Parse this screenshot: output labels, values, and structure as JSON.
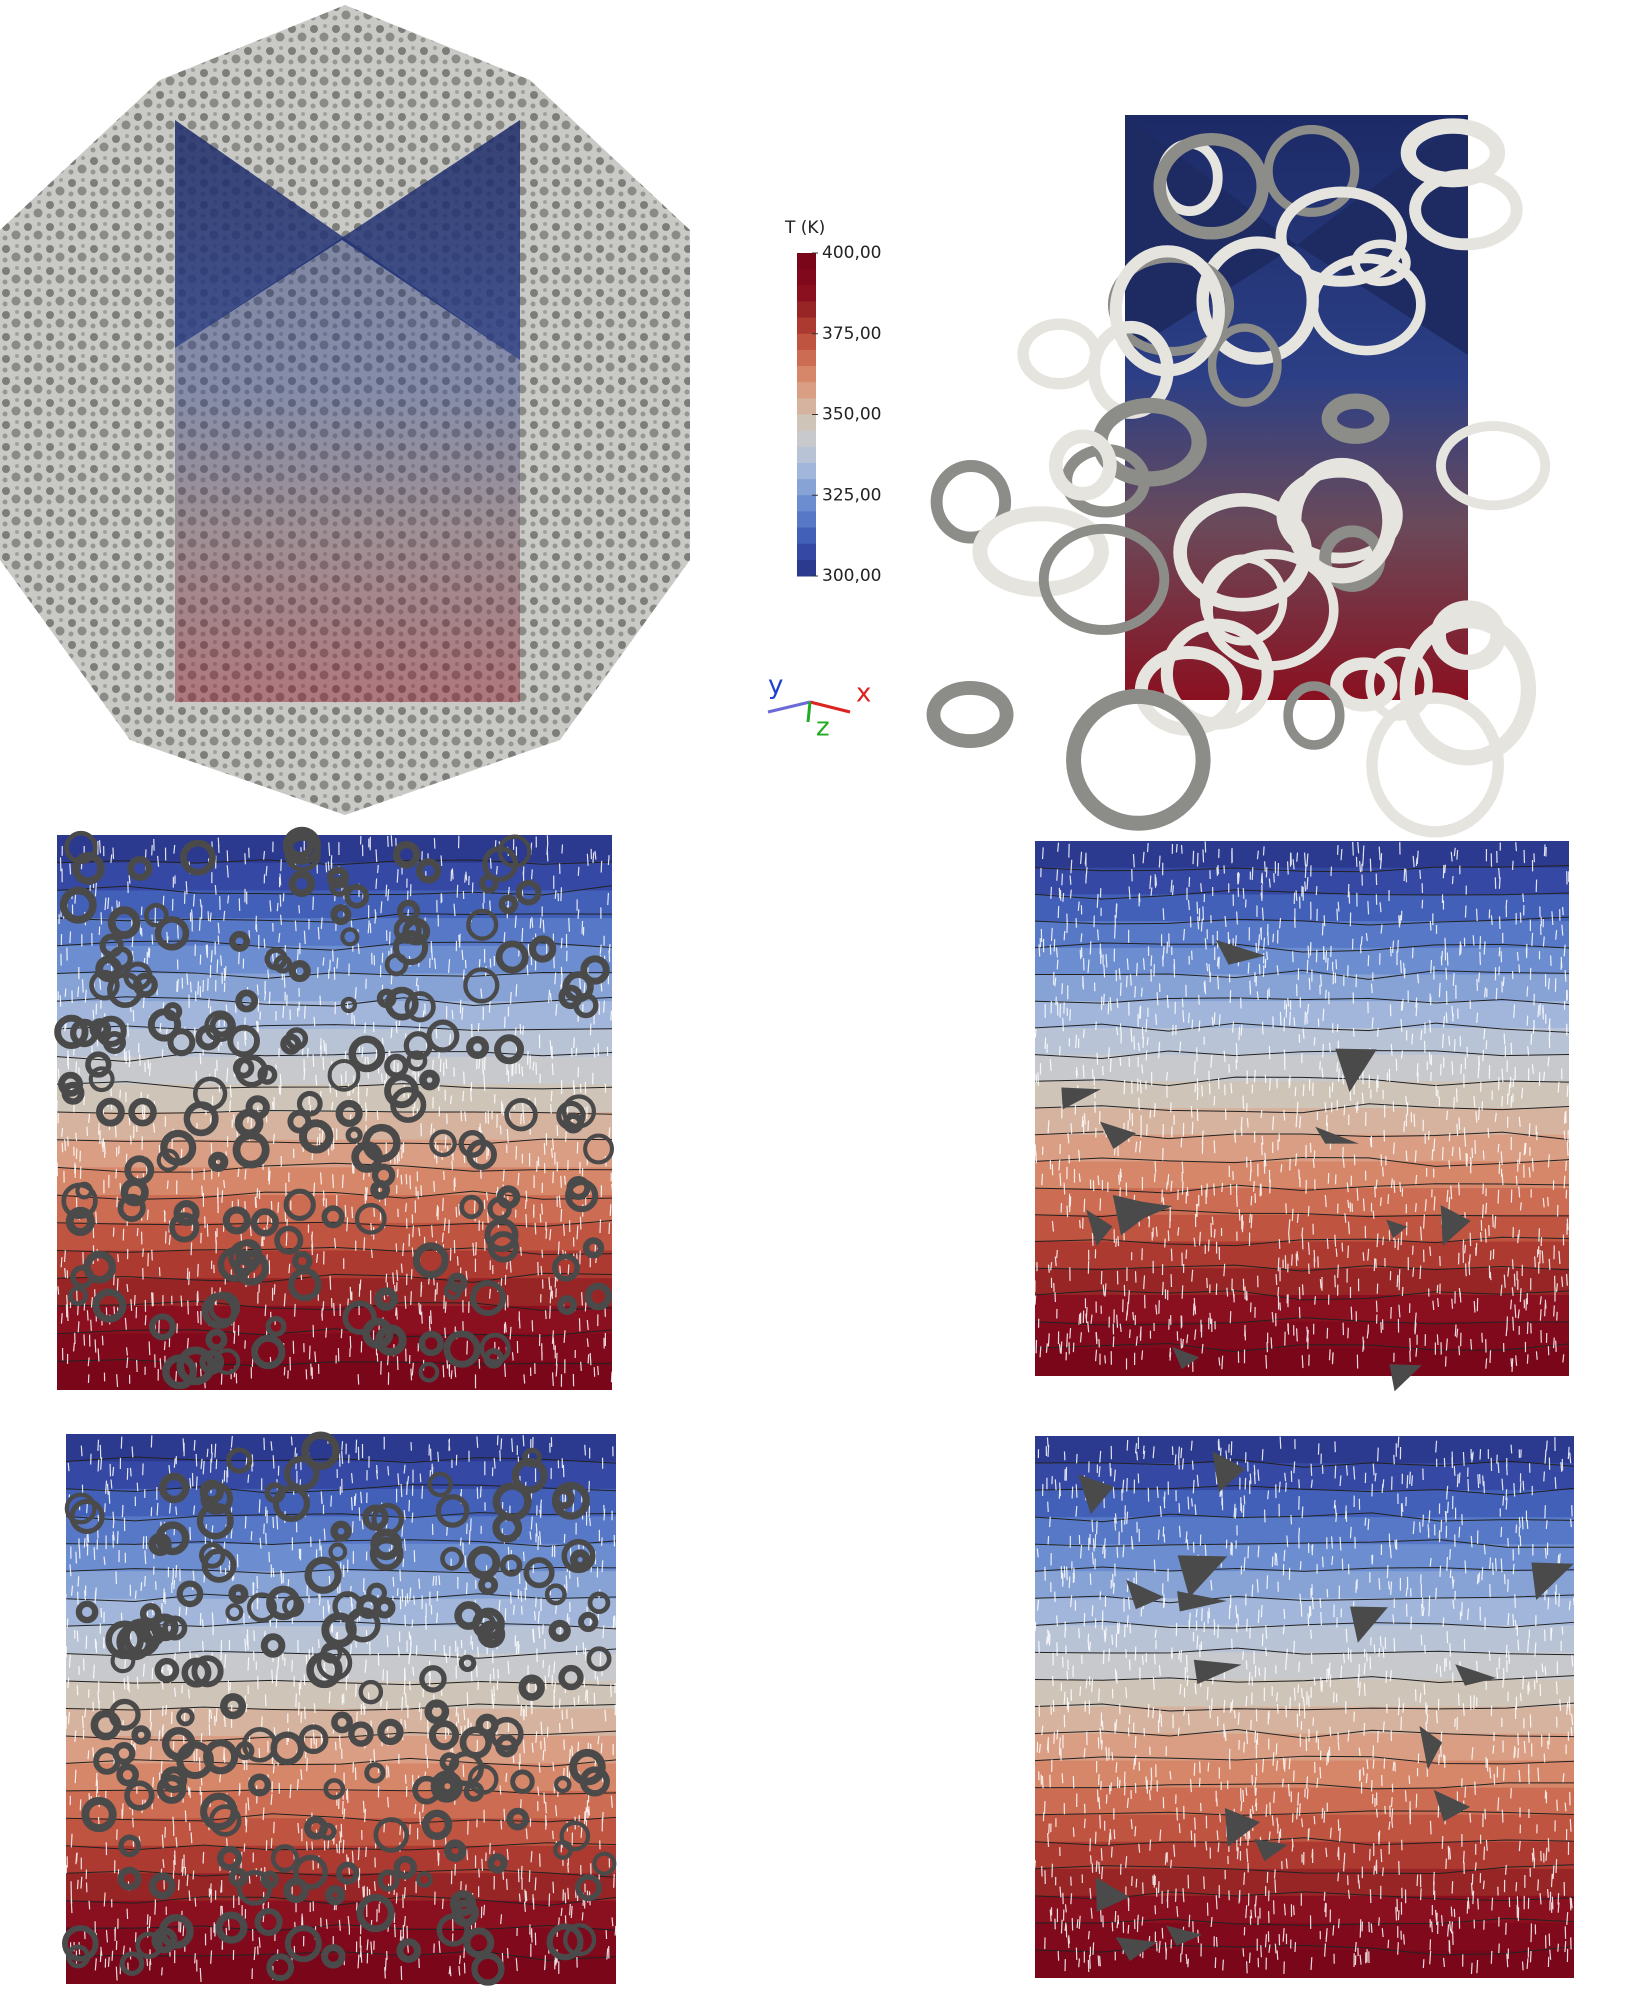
{
  "colorbar": {
    "title": "T (K)",
    "labels": [
      "400,00",
      "375,00",
      "350,00",
      "325,00",
      "300,00"
    ]
  },
  "axes_triad": {
    "x": "x",
    "y": "y",
    "z": "z"
  }
}
